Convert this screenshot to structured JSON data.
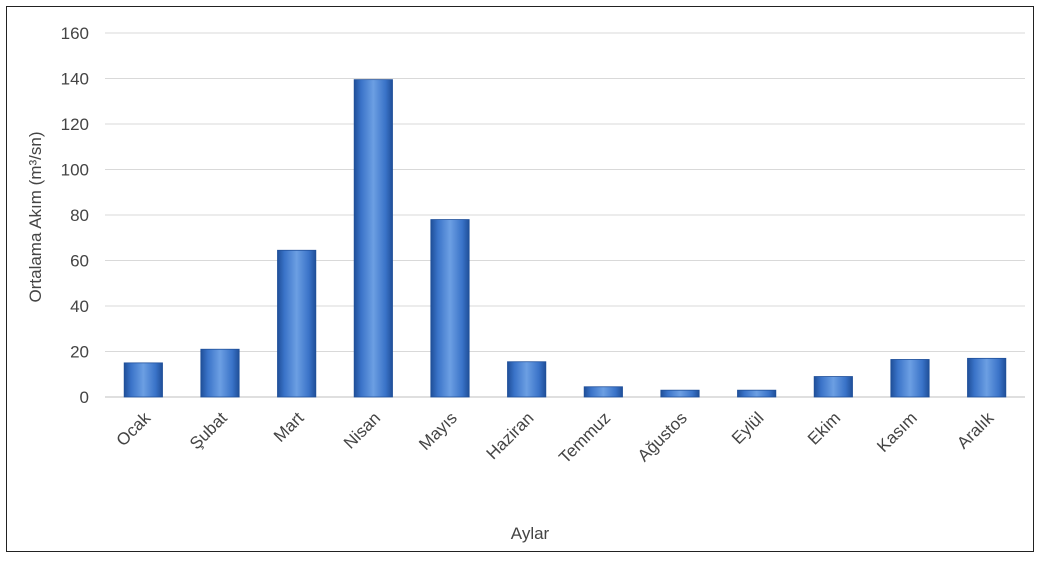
{
  "chart_data": {
    "type": "bar",
    "title": "",
    "xlabel": "Aylar",
    "ylabel": "Ortalama Akım (m³/sn)",
    "ylim": [
      0,
      160
    ],
    "yticks": [
      0,
      20,
      40,
      60,
      80,
      100,
      120,
      140,
      160
    ],
    "categories": [
      "Ocak",
      "Şubat",
      "Mart",
      "Nisan",
      "Mayıs",
      "Haziran",
      "Temmuz",
      "Ağustos",
      "Eylül",
      "Ekim",
      "Kasım",
      "Aralık"
    ],
    "values": [
      15,
      21,
      64.5,
      139.5,
      78,
      15.5,
      4.5,
      3,
      3,
      9,
      16.5,
      17
    ],
    "grid": true,
    "legend": "none",
    "colors": {
      "bar": "#3a73c8",
      "bar_dark": "#1f4f99",
      "bar_light": "#6c9fe3",
      "grid": "#d9d9d9",
      "axis": "#bfbfbf"
    }
  }
}
